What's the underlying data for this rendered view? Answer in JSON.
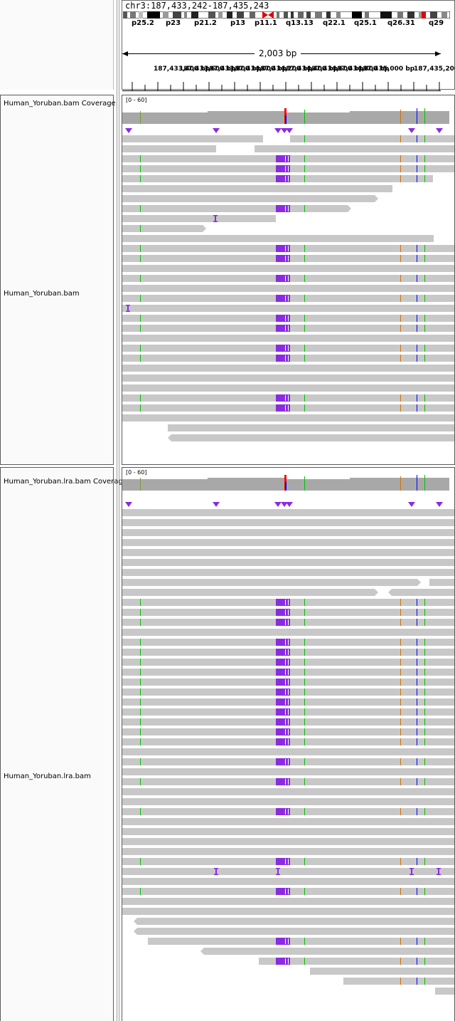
{
  "header": {
    "locus": "chr3:187,433,242-187,435,243",
    "span": "2,003 bp",
    "cytobands": [
      "p25.2",
      "p23",
      "p21.2",
      "p13",
      "p11.1",
      "q13.13",
      "q22.1",
      "q25.1",
      "q26.31",
      "q29"
    ],
    "ruler_ticks": [
      "187,433,400 bp",
      "187,433,600 bp",
      "187,433,800 bp",
      "187,434,000 bp",
      "187,434,200 bp",
      "187,434,400 bp",
      "187,434,600 bp",
      "187,434,800 bp",
      "187,435,000 bp",
      "187,435,200 bp"
    ]
  },
  "tracks": [
    {
      "coverage_name": "Human_Yoruban.bam Coverage",
      "name": "Human_Yoruban.bam",
      "range": "[0 - 60]"
    },
    {
      "coverage_name": "Human_Yoruban.lra.bam Coverage",
      "name": "Human_Yoruban.lra.bam",
      "range": "[0 - 60]"
    }
  ],
  "colors": {
    "read": "#c8c8c8",
    "coverage": "#a8a8a8",
    "insertion": "#8a2be2",
    "mismatch_a": "#00c000",
    "mismatch_c": "#0000ff",
    "mismatch_g": "#d17105",
    "mismatch_t": "#ff0000",
    "centromere": "#e00000"
  }
}
